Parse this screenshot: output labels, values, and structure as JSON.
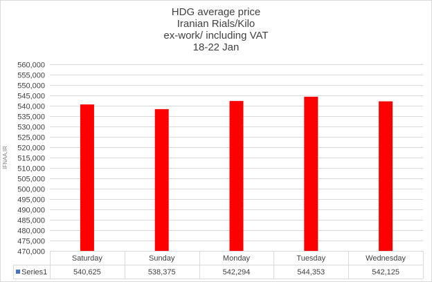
{
  "chart_data": {
    "type": "bar",
    "title_lines": [
      "HDG average price",
      "Iranian Rials/Kilo",
      "ex-work/ including VAT",
      "18-22 Jan"
    ],
    "watermark": "IFNAA.IR",
    "categories": [
      "Saturday",
      "Sunday",
      "Monday",
      "Tuesday",
      "Wednesday"
    ],
    "series": [
      {
        "name": "Series1",
        "values": [
          540625,
          538375,
          542294,
          544353,
          542125
        ],
        "value_labels": [
          "540,625",
          "538,375",
          "542,294",
          "544,353",
          "542,125"
        ],
        "color": "#ff0000"
      }
    ],
    "ylim": [
      470000,
      560000
    ],
    "ytick_step": 5000,
    "grid": true,
    "legend": "data-table-below",
    "colors": {
      "bar": "#ff0000",
      "legend_key": "#4472c4",
      "grid": "#d9d9d9",
      "text": "#404040"
    }
  }
}
